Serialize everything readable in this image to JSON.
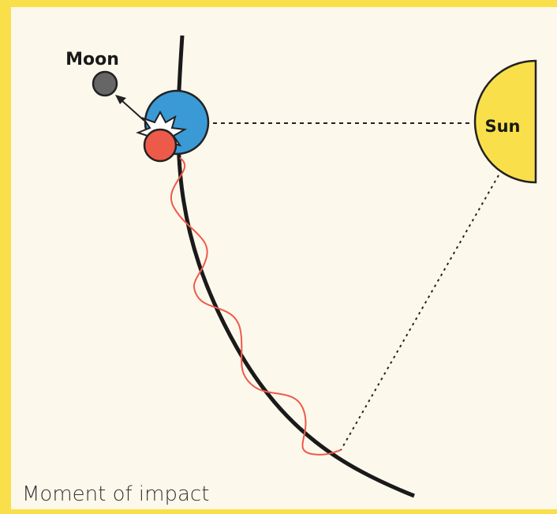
{
  "labels": {
    "moon": "Moon",
    "sun": "Sun",
    "caption": "Moment of impact"
  }
}
